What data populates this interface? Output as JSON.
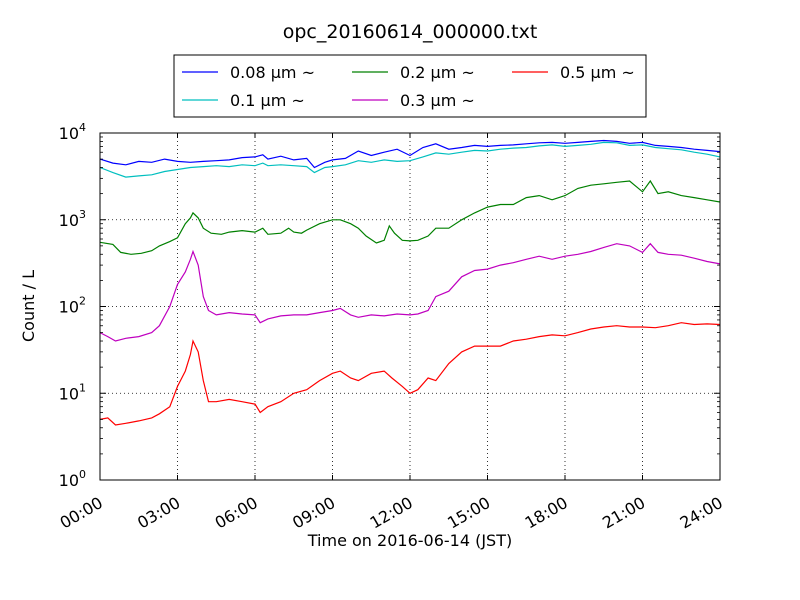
{
  "chart_data": {
    "type": "line",
    "title": "opc_20160614_000000.txt",
    "xlabel": "Time on 2016-06-14 (JST)",
    "ylabel": "Count / L",
    "yscale": "log",
    "ylim": [
      1,
      10000
    ],
    "xlim": [
      "00:00",
      "24:00"
    ],
    "grid": true,
    "legend_position": "top",
    "x_ticks": [
      "00:00",
      "03:00",
      "06:00",
      "09:00",
      "12:00",
      "15:00",
      "18:00",
      "21:00",
      "24:00"
    ],
    "y_ticks": [
      {
        "base": "10",
        "exp": "0",
        "value": 1
      },
      {
        "base": "10",
        "exp": "1",
        "value": 10
      },
      {
        "base": "10",
        "exp": "2",
        "value": 100
      },
      {
        "base": "10",
        "exp": "3",
        "value": 1000
      },
      {
        "base": "10",
        "exp": "4",
        "value": 10000
      }
    ],
    "series": [
      {
        "name": "0.08 μm ~",
        "color": "#0000ff",
        "points": [
          [
            0,
            5000
          ],
          [
            0.5,
            4500
          ],
          [
            1,
            4300
          ],
          [
            1.5,
            4700
          ],
          [
            2,
            4600
          ],
          [
            2.5,
            5000
          ],
          [
            3,
            4700
          ],
          [
            3.5,
            4600
          ],
          [
            4,
            4700
          ],
          [
            4.5,
            4800
          ],
          [
            5,
            4900
          ],
          [
            5.5,
            5200
          ],
          [
            6,
            5300
          ],
          [
            6.3,
            5600
          ],
          [
            6.5,
            5000
          ],
          [
            7,
            5400
          ],
          [
            7.5,
            4900
          ],
          [
            8,
            5100
          ],
          [
            8.3,
            4000
          ],
          [
            8.7,
            4600
          ],
          [
            9,
            4900
          ],
          [
            9.5,
            5100
          ],
          [
            10,
            6200
          ],
          [
            10.5,
            5500
          ],
          [
            11,
            6000
          ],
          [
            11.5,
            6500
          ],
          [
            12,
            5500
          ],
          [
            12.5,
            6800
          ],
          [
            13,
            7500
          ],
          [
            13.5,
            6500
          ],
          [
            14,
            6800
          ],
          [
            14.5,
            7200
          ],
          [
            15,
            7000
          ],
          [
            15.5,
            7200
          ],
          [
            16,
            7300
          ],
          [
            16.5,
            7500
          ],
          [
            17,
            7700
          ],
          [
            17.5,
            7800
          ],
          [
            18,
            7600
          ],
          [
            18.5,
            7800
          ],
          [
            19,
            8000
          ],
          [
            19.5,
            8200
          ],
          [
            20,
            8000
          ],
          [
            20.5,
            7600
          ],
          [
            21,
            7800
          ],
          [
            21.5,
            7200
          ],
          [
            22,
            7000
          ],
          [
            22.5,
            6800
          ],
          [
            23,
            6500
          ],
          [
            23.5,
            6300
          ],
          [
            24,
            6100
          ]
        ]
      },
      {
        "name": "0.1 μm ~",
        "color": "#00bfbf",
        "points": [
          [
            0,
            4000
          ],
          [
            0.5,
            3500
          ],
          [
            1,
            3100
          ],
          [
            1.5,
            3200
          ],
          [
            2,
            3300
          ],
          [
            2.5,
            3600
          ],
          [
            3,
            3800
          ],
          [
            3.5,
            4000
          ],
          [
            4,
            4100
          ],
          [
            4.5,
            4200
          ],
          [
            5,
            4100
          ],
          [
            5.5,
            4300
          ],
          [
            6,
            4200
          ],
          [
            6.3,
            4500
          ],
          [
            6.5,
            4200
          ],
          [
            7,
            4300
          ],
          [
            7.5,
            4200
          ],
          [
            8,
            4100
          ],
          [
            8.3,
            3500
          ],
          [
            8.7,
            4000
          ],
          [
            9,
            4100
          ],
          [
            9.5,
            4300
          ],
          [
            10,
            4800
          ],
          [
            10.5,
            4600
          ],
          [
            11,
            4900
          ],
          [
            11.5,
            4700
          ],
          [
            12,
            4800
          ],
          [
            12.5,
            5300
          ],
          [
            13,
            5900
          ],
          [
            13.5,
            5700
          ],
          [
            14,
            6000
          ],
          [
            14.5,
            6300
          ],
          [
            15,
            6200
          ],
          [
            15.5,
            6500
          ],
          [
            16,
            6700
          ],
          [
            16.5,
            6800
          ],
          [
            17,
            7100
          ],
          [
            17.5,
            7300
          ],
          [
            18,
            7000
          ],
          [
            18.5,
            7200
          ],
          [
            19,
            7400
          ],
          [
            19.5,
            7800
          ],
          [
            20,
            7700
          ],
          [
            20.5,
            7200
          ],
          [
            21,
            7300
          ],
          [
            21.5,
            6800
          ],
          [
            22,
            6600
          ],
          [
            22.5,
            6400
          ],
          [
            23,
            6000
          ],
          [
            23.5,
            5700
          ],
          [
            24,
            5300
          ]
        ]
      },
      {
        "name": "0.2 μm ~",
        "color": "#008000",
        "points": [
          [
            0,
            550
          ],
          [
            0.5,
            520
          ],
          [
            0.8,
            420
          ],
          [
            1.2,
            400
          ],
          [
            1.6,
            410
          ],
          [
            2,
            440
          ],
          [
            2.3,
            500
          ],
          [
            2.7,
            560
          ],
          [
            3,
            620
          ],
          [
            3.3,
            900
          ],
          [
            3.5,
            1050
          ],
          [
            3.6,
            1200
          ],
          [
            3.8,
            1050
          ],
          [
            4,
            800
          ],
          [
            4.3,
            700
          ],
          [
            4.7,
            680
          ],
          [
            5,
            720
          ],
          [
            5.5,
            750
          ],
          [
            6,
            720
          ],
          [
            6.3,
            800
          ],
          [
            6.5,
            680
          ],
          [
            7,
            700
          ],
          [
            7.3,
            800
          ],
          [
            7.5,
            720
          ],
          [
            7.8,
            700
          ],
          [
            8,
            760
          ],
          [
            8.5,
            900
          ],
          [
            9,
            1000
          ],
          [
            9.3,
            1000
          ],
          [
            9.7,
            900
          ],
          [
            10,
            800
          ],
          [
            10.3,
            650
          ],
          [
            10.7,
            540
          ],
          [
            11,
            580
          ],
          [
            11.2,
            850
          ],
          [
            11.4,
            700
          ],
          [
            11.7,
            580
          ],
          [
            12,
            570
          ],
          [
            12.3,
            580
          ],
          [
            12.7,
            650
          ],
          [
            13,
            800
          ],
          [
            13.5,
            800
          ],
          [
            14,
            1000
          ],
          [
            14.5,
            1200
          ],
          [
            15,
            1400
          ],
          [
            15.5,
            1500
          ],
          [
            16,
            1500
          ],
          [
            16.5,
            1800
          ],
          [
            17,
            1900
          ],
          [
            17.5,
            1700
          ],
          [
            18,
            1900
          ],
          [
            18.5,
            2300
          ],
          [
            19,
            2500
          ],
          [
            19.5,
            2600
          ],
          [
            20,
            2700
          ],
          [
            20.5,
            2800
          ],
          [
            21,
            2100
          ],
          [
            21.3,
            2800
          ],
          [
            21.6,
            2000
          ],
          [
            22,
            2100
          ],
          [
            22.5,
            1900
          ],
          [
            23,
            1800
          ],
          [
            23.5,
            1700
          ],
          [
            24,
            1600
          ]
        ]
      },
      {
        "name": "0.3 μm ~",
        "color": "#bf00bf",
        "points": [
          [
            0,
            50
          ],
          [
            0.3,
            45
          ],
          [
            0.6,
            40
          ],
          [
            1,
            43
          ],
          [
            1.5,
            45
          ],
          [
            2,
            50
          ],
          [
            2.3,
            60
          ],
          [
            2.7,
            100
          ],
          [
            3,
            180
          ],
          [
            3.3,
            250
          ],
          [
            3.5,
            350
          ],
          [
            3.6,
            430
          ],
          [
            3.8,
            300
          ],
          [
            4,
            130
          ],
          [
            4.2,
            90
          ],
          [
            4.5,
            80
          ],
          [
            5,
            85
          ],
          [
            5.5,
            82
          ],
          [
            6,
            80
          ],
          [
            6.2,
            65
          ],
          [
            6.5,
            72
          ],
          [
            7,
            78
          ],
          [
            7.5,
            80
          ],
          [
            8,
            80
          ],
          [
            8.5,
            85
          ],
          [
            9,
            90
          ],
          [
            9.3,
            95
          ],
          [
            9.7,
            80
          ],
          [
            10,
            75
          ],
          [
            10.5,
            80
          ],
          [
            11,
            78
          ],
          [
            11.5,
            82
          ],
          [
            12,
            80
          ],
          [
            12.3,
            82
          ],
          [
            12.7,
            90
          ],
          [
            13,
            130
          ],
          [
            13.5,
            150
          ],
          [
            14,
            220
          ],
          [
            14.5,
            260
          ],
          [
            15,
            270
          ],
          [
            15.5,
            300
          ],
          [
            16,
            320
          ],
          [
            16.5,
            350
          ],
          [
            17,
            380
          ],
          [
            17.5,
            350
          ],
          [
            18,
            380
          ],
          [
            18.5,
            400
          ],
          [
            19,
            430
          ],
          [
            19.5,
            480
          ],
          [
            20,
            530
          ],
          [
            20.5,
            500
          ],
          [
            21,
            420
          ],
          [
            21.3,
            530
          ],
          [
            21.6,
            420
          ],
          [
            22,
            400
          ],
          [
            22.5,
            390
          ],
          [
            23,
            360
          ],
          [
            23.5,
            330
          ],
          [
            24,
            310
          ]
        ]
      },
      {
        "name": "0.5 μm ~",
        "color": "#ff0000",
        "points": [
          [
            0,
            5
          ],
          [
            0.3,
            5.2
          ],
          [
            0.6,
            4.3
          ],
          [
            1,
            4.5
          ],
          [
            1.5,
            4.8
          ],
          [
            2,
            5.2
          ],
          [
            2.3,
            5.8
          ],
          [
            2.7,
            7
          ],
          [
            3,
            12
          ],
          [
            3.3,
            18
          ],
          [
            3.5,
            28
          ],
          [
            3.6,
            40
          ],
          [
            3.8,
            30
          ],
          [
            4,
            14
          ],
          [
            4.2,
            8
          ],
          [
            4.5,
            8
          ],
          [
            5,
            8.5
          ],
          [
            5.5,
            8
          ],
          [
            6,
            7.5
          ],
          [
            6.2,
            6
          ],
          [
            6.5,
            7
          ],
          [
            7,
            8
          ],
          [
            7.5,
            10
          ],
          [
            8,
            11
          ],
          [
            8.5,
            14
          ],
          [
            9,
            17
          ],
          [
            9.3,
            18
          ],
          [
            9.7,
            15
          ],
          [
            10,
            14
          ],
          [
            10.5,
            17
          ],
          [
            11,
            18
          ],
          [
            11.3,
            15
          ],
          [
            11.7,
            12
          ],
          [
            12,
            10
          ],
          [
            12.3,
            11
          ],
          [
            12.7,
            15
          ],
          [
            13,
            14
          ],
          [
            13.5,
            22
          ],
          [
            14,
            30
          ],
          [
            14.5,
            35
          ],
          [
            15,
            35
          ],
          [
            15.5,
            35
          ],
          [
            16,
            40
          ],
          [
            16.5,
            42
          ],
          [
            17,
            45
          ],
          [
            17.5,
            47
          ],
          [
            18,
            46
          ],
          [
            18.5,
            50
          ],
          [
            19,
            55
          ],
          [
            19.5,
            58
          ],
          [
            20,
            60
          ],
          [
            20.5,
            58
          ],
          [
            21,
            58
          ],
          [
            21.5,
            57
          ],
          [
            22,
            60
          ],
          [
            22.5,
            65
          ],
          [
            23,
            62
          ],
          [
            23.5,
            63
          ],
          [
            24,
            62
          ]
        ]
      }
    ]
  }
}
